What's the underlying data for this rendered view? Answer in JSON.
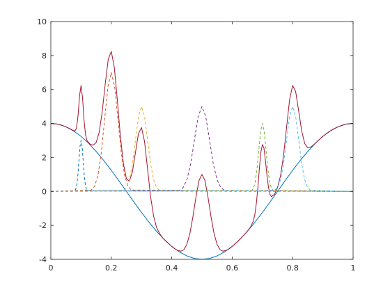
{
  "chart_data": {
    "type": "line",
    "xlim": [
      0,
      1
    ],
    "xticks": [
      0,
      0.2,
      0.4,
      0.6,
      0.8,
      1
    ],
    "ylim": [
      -4,
      10
    ],
    "yticks": [
      -4,
      -2,
      0,
      2,
      4,
      6,
      8,
      10
    ],
    "grid": false,
    "series": [
      {
        "color": "#0072bd",
        "style": "solid",
        "x": [
          0,
          0.025,
          0.05,
          0.075,
          0.1,
          0.125,
          0.15,
          0.175,
          0.2,
          0.225,
          0.25,
          0.275,
          0.3,
          0.325,
          0.35,
          0.375,
          0.4,
          0.425,
          0.45,
          0.475,
          0.5,
          0.525,
          0.55,
          0.575,
          0.6,
          0.625,
          0.65,
          0.675,
          0.7,
          0.725,
          0.75,
          0.775,
          0.8,
          0.825,
          0.85,
          0.875,
          0.9,
          0.925,
          0.95,
          0.975,
          1
        ],
        "values": [
          4,
          3.95,
          3.8,
          3.56,
          3.24,
          2.83,
          2.35,
          1.82,
          1.24,
          0.63,
          0,
          -0.63,
          -1.24,
          -1.82,
          -2.35,
          -2.83,
          -3.24,
          -3.56,
          -3.8,
          -3.95,
          -4,
          -3.95,
          -3.8,
          -3.56,
          -3.24,
          -2.83,
          -2.35,
          -1.82,
          -1.24,
          -0.63,
          0,
          0.63,
          1.24,
          1.82,
          2.35,
          2.83,
          3.24,
          3.56,
          3.8,
          3.95,
          4
        ]
      },
      {
        "color": "#a2142f",
        "style": "solid",
        "x": [
          0,
          0.01,
          0.02,
          0.03,
          0.04,
          0.05,
          0.06,
          0.07,
          0.08,
          0.085,
          0.09,
          0.095,
          0.1,
          0.105,
          0.11,
          0.115,
          0.12,
          0.13,
          0.14,
          0.15,
          0.16,
          0.17,
          0.18,
          0.19,
          0.2,
          0.21,
          0.22,
          0.23,
          0.24,
          0.25,
          0.26,
          0.27,
          0.28,
          0.29,
          0.3,
          0.31,
          0.32,
          0.33,
          0.34,
          0.35,
          0.36,
          0.37,
          0.38,
          0.39,
          0.4,
          0.41,
          0.42,
          0.43,
          0.44,
          0.45,
          0.46,
          0.47,
          0.48,
          0.49,
          0.5,
          0.51,
          0.52,
          0.53,
          0.54,
          0.55,
          0.56,
          0.57,
          0.58,
          0.59,
          0.6,
          0.61,
          0.62,
          0.63,
          0.64,
          0.65,
          0.66,
          0.67,
          0.675,
          0.68,
          0.685,
          0.69,
          0.695,
          0.7,
          0.705,
          0.71,
          0.715,
          0.72,
          0.725,
          0.73,
          0.74,
          0.75,
          0.76,
          0.77,
          0.78,
          0.79,
          0.8,
          0.81,
          0.82,
          0.83,
          0.84,
          0.85,
          0.86,
          0.87,
          0.88,
          0.89,
          0.9,
          0.91,
          0.92,
          0.93,
          0.94,
          0.95,
          0.96,
          0.97,
          0.98,
          0.99,
          1
        ],
        "values": [
          4,
          3.99,
          3.97,
          3.93,
          3.87,
          3.8,
          3.72,
          3.62,
          3.56,
          3.74,
          4.46,
          5.63,
          6.24,
          5.48,
          4.16,
          3.31,
          2.98,
          2.78,
          2.72,
          2.88,
          3.48,
          4.69,
          6.33,
          7.78,
          8.24,
          7.31,
          5.38,
          3.27,
          1.65,
          0.75,
          0.6,
          1.16,
          2.29,
          3.41,
          3.76,
          2.94,
          1.33,
          -0.31,
          -1.46,
          -2.13,
          -2.49,
          -2.73,
          -2.92,
          -3.08,
          -3.24,
          -3.38,
          -3.48,
          -3.52,
          -3.44,
          -3.12,
          -2.48,
          -1.5,
          -0.34,
          0.63,
          1,
          0.63,
          -0.34,
          -1.5,
          -2.48,
          -3.12,
          -3.44,
          -3.52,
          -3.48,
          -3.38,
          -3.24,
          -3.08,
          -2.92,
          -2.74,
          -2.55,
          -2.35,
          -2.12,
          -1.75,
          -1.36,
          -0.7,
          0.24,
          1.36,
          2.32,
          2.76,
          2.55,
          1.83,
          0.96,
          0.25,
          -0.17,
          -0.31,
          -0.17,
          0.22,
          0.93,
          2.12,
          3.78,
          5.41,
          6.24,
          5.88,
          4.73,
          3.55,
          2.82,
          2.57,
          2.61,
          2.75,
          2.92,
          3.08,
          3.24,
          3.38,
          3.51,
          3.62,
          3.72,
          3.8,
          3.87,
          3.93,
          3.97,
          3.99,
          4
        ]
      },
      {
        "color": "#0072bd",
        "style": "dashed",
        "x": [
          0,
          0.079,
          0.0825,
          0.086,
          0.0895,
          0.093,
          0.0965,
          0.1,
          0.1035,
          0.107,
          0.1105,
          0.114,
          0.1175,
          0.121,
          1
        ],
        "values": [
          0,
          0.03,
          0.13,
          0.41,
          0.97,
          1.82,
          2.65,
          3,
          2.65,
          1.82,
          0.97,
          0.41,
          0.13,
          0.03,
          0
        ]
      },
      {
        "color": "#d95319",
        "style": "dashed",
        "x": [
          0,
          0.134,
          0.145,
          0.156,
          0.167,
          0.178,
          0.189,
          0.2,
          0.211,
          0.222,
          0.233,
          0.244,
          0.255,
          0.266,
          1
        ],
        "values": [
          0,
          0.08,
          0.31,
          0.95,
          2.27,
          4.25,
          6.18,
          7,
          6.18,
          4.25,
          2.27,
          0.95,
          0.31,
          0.08,
          0
        ]
      },
      {
        "color": "#edb120",
        "style": "dashed",
        "x": [
          0,
          0.24,
          0.25,
          0.26,
          0.27,
          0.28,
          0.29,
          0.3,
          0.31,
          0.32,
          0.33,
          0.34,
          0.35,
          0.36,
          1
        ],
        "values": [
          0,
          0.06,
          0.22,
          0.68,
          1.62,
          3.03,
          4.41,
          5,
          4.41,
          3.03,
          1.62,
          0.68,
          0.22,
          0.06,
          0
        ]
      },
      {
        "color": "#7e2f8e",
        "style": "dashed",
        "x": [
          0,
          0.425,
          0.4375,
          0.45,
          0.4625,
          0.475,
          0.4875,
          0.5,
          0.5125,
          0.525,
          0.5375,
          0.55,
          0.5625,
          0.575,
          1
        ],
        "values": [
          0,
          0.06,
          0.22,
          0.68,
          1.62,
          3.03,
          4.41,
          5,
          4.41,
          3.03,
          1.62,
          0.68,
          0.22,
          0.06,
          0
        ]
      },
      {
        "color": "#77ac30",
        "style": "dashed",
        "x": [
          0,
          0.664,
          0.67,
          0.676,
          0.682,
          0.688,
          0.694,
          0.7,
          0.706,
          0.712,
          0.718,
          0.724,
          0.73,
          0.736,
          1
        ],
        "values": [
          0,
          0.04,
          0.18,
          0.54,
          1.3,
          2.43,
          3.53,
          4,
          3.53,
          2.43,
          1.3,
          0.54,
          0.18,
          0.04,
          0
        ]
      },
      {
        "color": "#4dbeee",
        "style": "dashed",
        "x": [
          0,
          0.74,
          0.75,
          0.76,
          0.77,
          0.78,
          0.79,
          0.8,
          0.81,
          0.82,
          0.83,
          0.84,
          0.85,
          0.86,
          1
        ],
        "values": [
          0,
          0.06,
          0.22,
          0.68,
          1.62,
          3.03,
          4.41,
          5,
          4.41,
          3.03,
          1.62,
          0.68,
          0.22,
          0.06,
          0
        ]
      }
    ]
  }
}
